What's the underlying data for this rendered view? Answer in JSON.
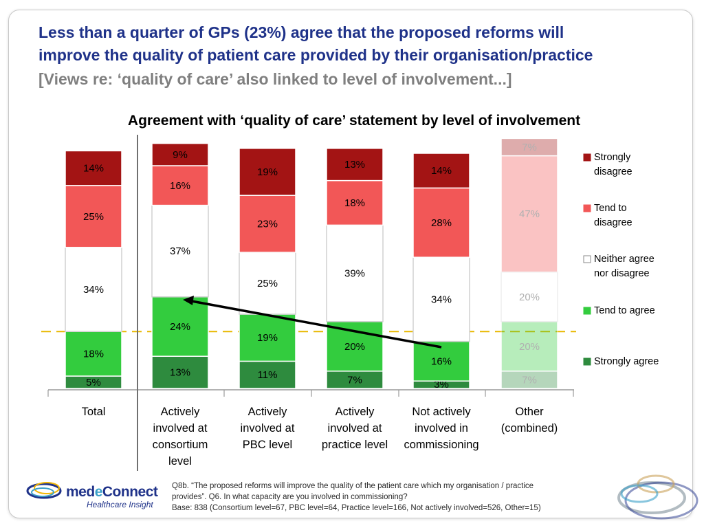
{
  "title": {
    "line1": "Less than a quarter of GPs (23%) agree that the proposed reforms will",
    "line2": "improve the quality of patient care provided by their organisation/practice",
    "subtitle": "[Views re: ‘quality of care’ also linked to level of involvement...]"
  },
  "chart_data": {
    "type": "bar",
    "stacked": true,
    "title": "Agreement with ‘quality of care’ statement by level of involvement",
    "unit": "%",
    "categories": [
      [
        "Total"
      ],
      [
        "Actively",
        "involved at",
        "consortium",
        "level"
      ],
      [
        "Actively",
        "involved at",
        "PBC level"
      ],
      [
        "Actively",
        "involved at",
        "practice level"
      ],
      [
        "Not actively",
        "involved in",
        "commissioning"
      ],
      [
        "Other",
        "(combined)"
      ]
    ],
    "faded_categories": [
      5
    ],
    "series": [
      {
        "name": "Strongly agree",
        "values": [
          5,
          13,
          11,
          7,
          3,
          7
        ],
        "color": "#2e8b3e"
      },
      {
        "name": "Tend to agree",
        "values": [
          18,
          24,
          19,
          20,
          16,
          20
        ],
        "color": "#33cc3e"
      },
      {
        "name": "Neither agree nor disagree",
        "values": [
          34,
          37,
          25,
          39,
          34,
          20
        ],
        "color": "#ffffff"
      },
      {
        "name": "Tend to disagree",
        "values": [
          25,
          16,
          23,
          18,
          28,
          47
        ],
        "color": "#f25757"
      },
      {
        "name": "Strongly disagree",
        "values": [
          14,
          9,
          19,
          13,
          14,
          7
        ],
        "color": "#a31414"
      }
    ],
    "legend_order": [
      "Strongly disagree",
      "Tend to disagree",
      "Neither agree nor disagree",
      "Tend to agree",
      "Strongly agree"
    ],
    "legend_labels": {
      "Strongly disagree": [
        "Strongly",
        "disagree"
      ],
      "Tend to disagree": [
        "Tend to",
        "disagree"
      ],
      "Neither agree nor disagree": [
        "Neither agree",
        "nor disagree"
      ],
      "Tend to agree": [
        "Tend to agree"
      ],
      "Strongly agree": [
        "Strongly agree"
      ]
    },
    "reference_line": {
      "value": 23,
      "color": "#e8b800",
      "style": "dashed"
    },
    "arrow": {
      "from_category": 4,
      "to_category": 1,
      "color": "#000000"
    },
    "legend_position": "right",
    "grid": false
  },
  "footnote": {
    "line1": "Q8b. “The proposed reforms will improve the quality of the patient care which my organisation / practice",
    "line2": "provides”.  Q6. In what capacity are you involved in commissioning?",
    "line3": "Base: 838 (Consortium level=67, PBC level=64, Practice level=166, Not actively involved=526, Other=15)"
  },
  "logo": {
    "name_part1": "med",
    "name_part2": "e",
    "name_part3": "Connect",
    "tagline": "Healthcare Insight"
  }
}
